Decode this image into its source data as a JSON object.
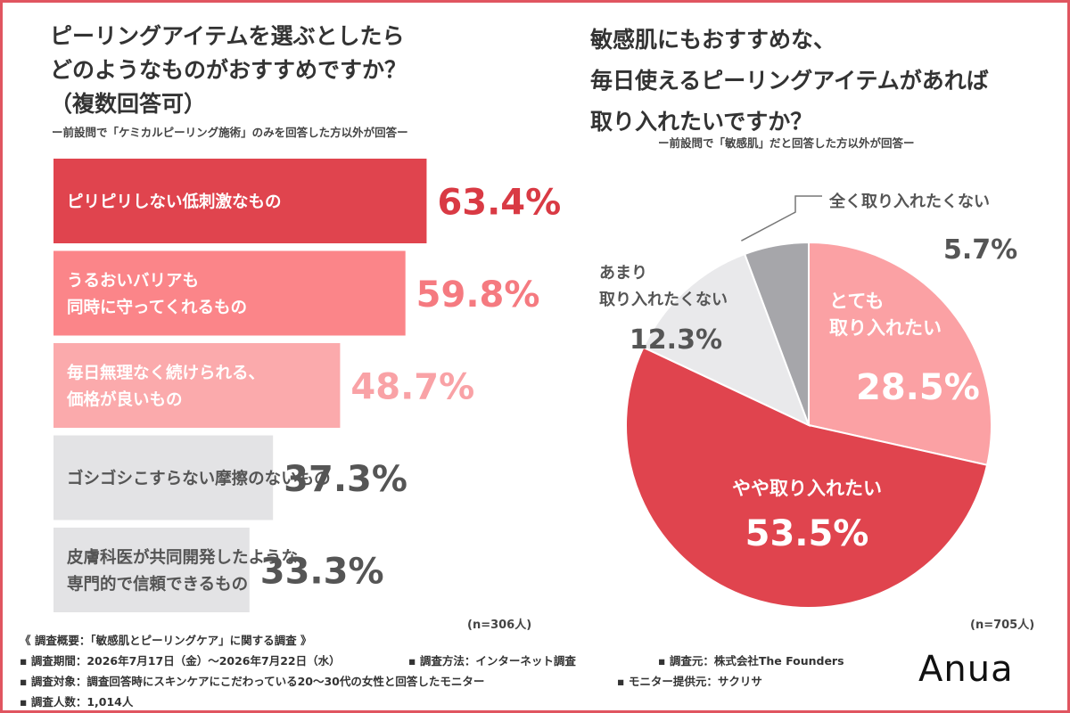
{
  "left": {
    "title_lines": [
      "ピーリングアイテムを選ぶとしたら",
      "どのようなものがおすすめですか？",
      "（複数回答可）"
    ],
    "note": "ー前設問で「ケミカルピーリング施術」のみを回答した方以外が回答ー",
    "n": "(n=306人)"
  },
  "right": {
    "title_lines": [
      "敏感肌にもおすすめな、",
      "毎日使えるピーリングアイテムがあれば",
      "取り入れたいですか？"
    ],
    "note": "ー前設問で「敏感肌」だと回答した方以外が回答ー",
    "n": "(n=705人)"
  },
  "chart_data": [
    {
      "type": "bar",
      "orientation": "horizontal",
      "categories": [
        [
          "ピリピリしない低刺激なもの"
        ],
        [
          "うるおいバリアも",
          "同時に守ってくれるもの"
        ],
        [
          "毎日無理なく続けられる、",
          "価格が良いもの"
        ],
        [
          "ゴシゴシこすらない摩擦のないもの"
        ],
        [
          "皮膚科医が共同開発したような、",
          "専門的で信頼できるもの"
        ]
      ],
      "values": [
        63.4,
        59.8,
        48.7,
        37.3,
        33.3
      ],
      "value_labels": [
        "63.4%",
        "59.8%",
        "48.7%",
        "37.3%",
        "33.3%"
      ],
      "colors": [
        "#e0444e",
        "#fb8589",
        "#fbaaac",
        "#e3e3e5",
        "#e3e3e5"
      ],
      "label_text_colors": [
        "#ffffff",
        "#ffffff",
        "#ffffff",
        "#555555",
        "#555555"
      ],
      "value_text_colors": [
        "#d93a44",
        "#f57a80",
        "#f9a2a6",
        "#555555",
        "#555555"
      ]
    },
    {
      "type": "pie",
      "labels": [
        [
          "とても",
          "取り入れたい"
        ],
        [
          "やや取り入れたい"
        ],
        [
          "あまり",
          "取り入れたくない"
        ],
        [
          "全く取り入れたくない"
        ]
      ],
      "values": [
        28.5,
        53.5,
        12.3,
        5.7
      ],
      "value_labels": [
        "28.5%",
        "53.5%",
        "12.3%",
        "5.7%"
      ],
      "colors": [
        "#fba1a4",
        "#e0444e",
        "#e9e9eb",
        "#a6a6aa"
      ],
      "start": "12 o'clock",
      "direction": "clockwise"
    }
  ],
  "survey": {
    "heading": "《 調査概要：「敏感肌とピーリングケア」に関する調査 》",
    "period": "▪ 調査期間：2026年7月17日（金）〜2026年7月22日（水）",
    "method": "▪ 調査方法：インターネット調査",
    "source": "▪ 調査元：株式会社The Founders",
    "target": "▪ 調査対象：調査回答時にスキンケアにこだわっている20〜30代の女性と回答したモニター",
    "provider": "▪ モニター提供元：サクリサ",
    "count": "▪ 調査人数：1,014人"
  },
  "brand": {
    "logo_text": "Anua"
  },
  "frame_color": "#e05560"
}
